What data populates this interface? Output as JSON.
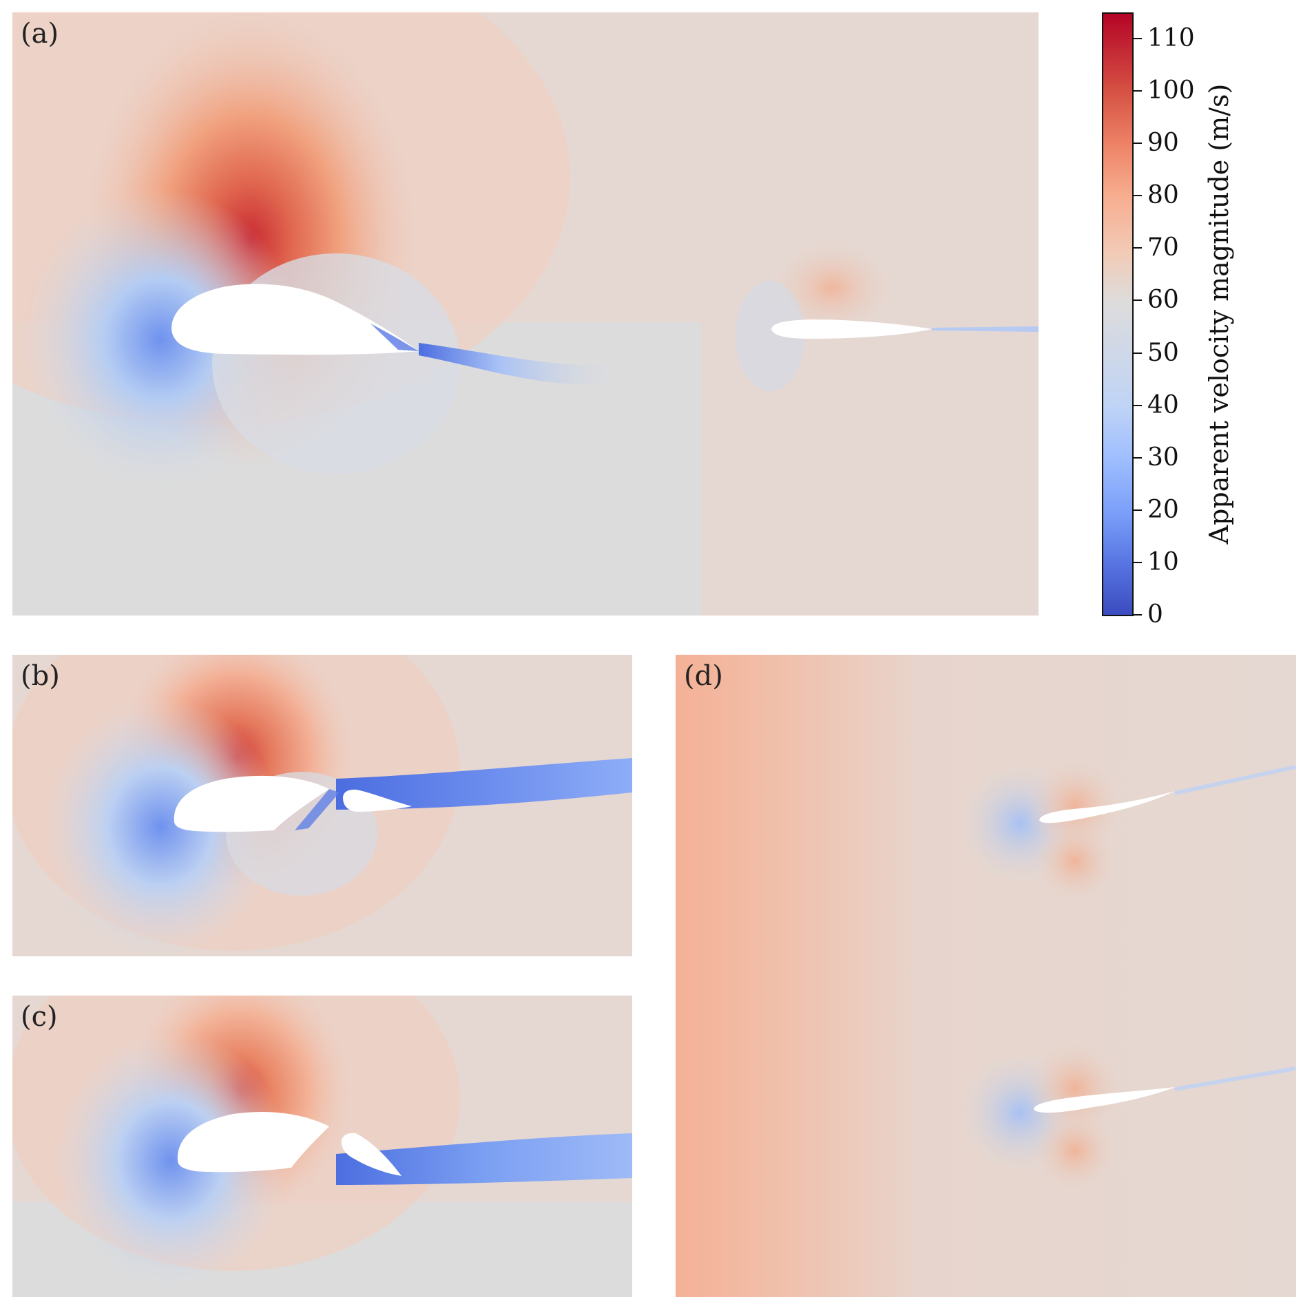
{
  "panels": {
    "a": {
      "label": "(a)"
    },
    "b": {
      "label": "(b)"
    },
    "c": {
      "label": "(c)"
    },
    "d": {
      "label": "(d)"
    }
  },
  "colorbar": {
    "title": "Apparent velocity magnitude (m/s)",
    "min": 0,
    "max": 115,
    "ticks": [
      "0",
      "10",
      "20",
      "30",
      "40",
      "50",
      "60",
      "70",
      "80",
      "90",
      "100",
      "110"
    ],
    "colors": {
      "low": "#3b4cc0",
      "mid": "#dddcdc",
      "high": "#b40426"
    }
  }
}
